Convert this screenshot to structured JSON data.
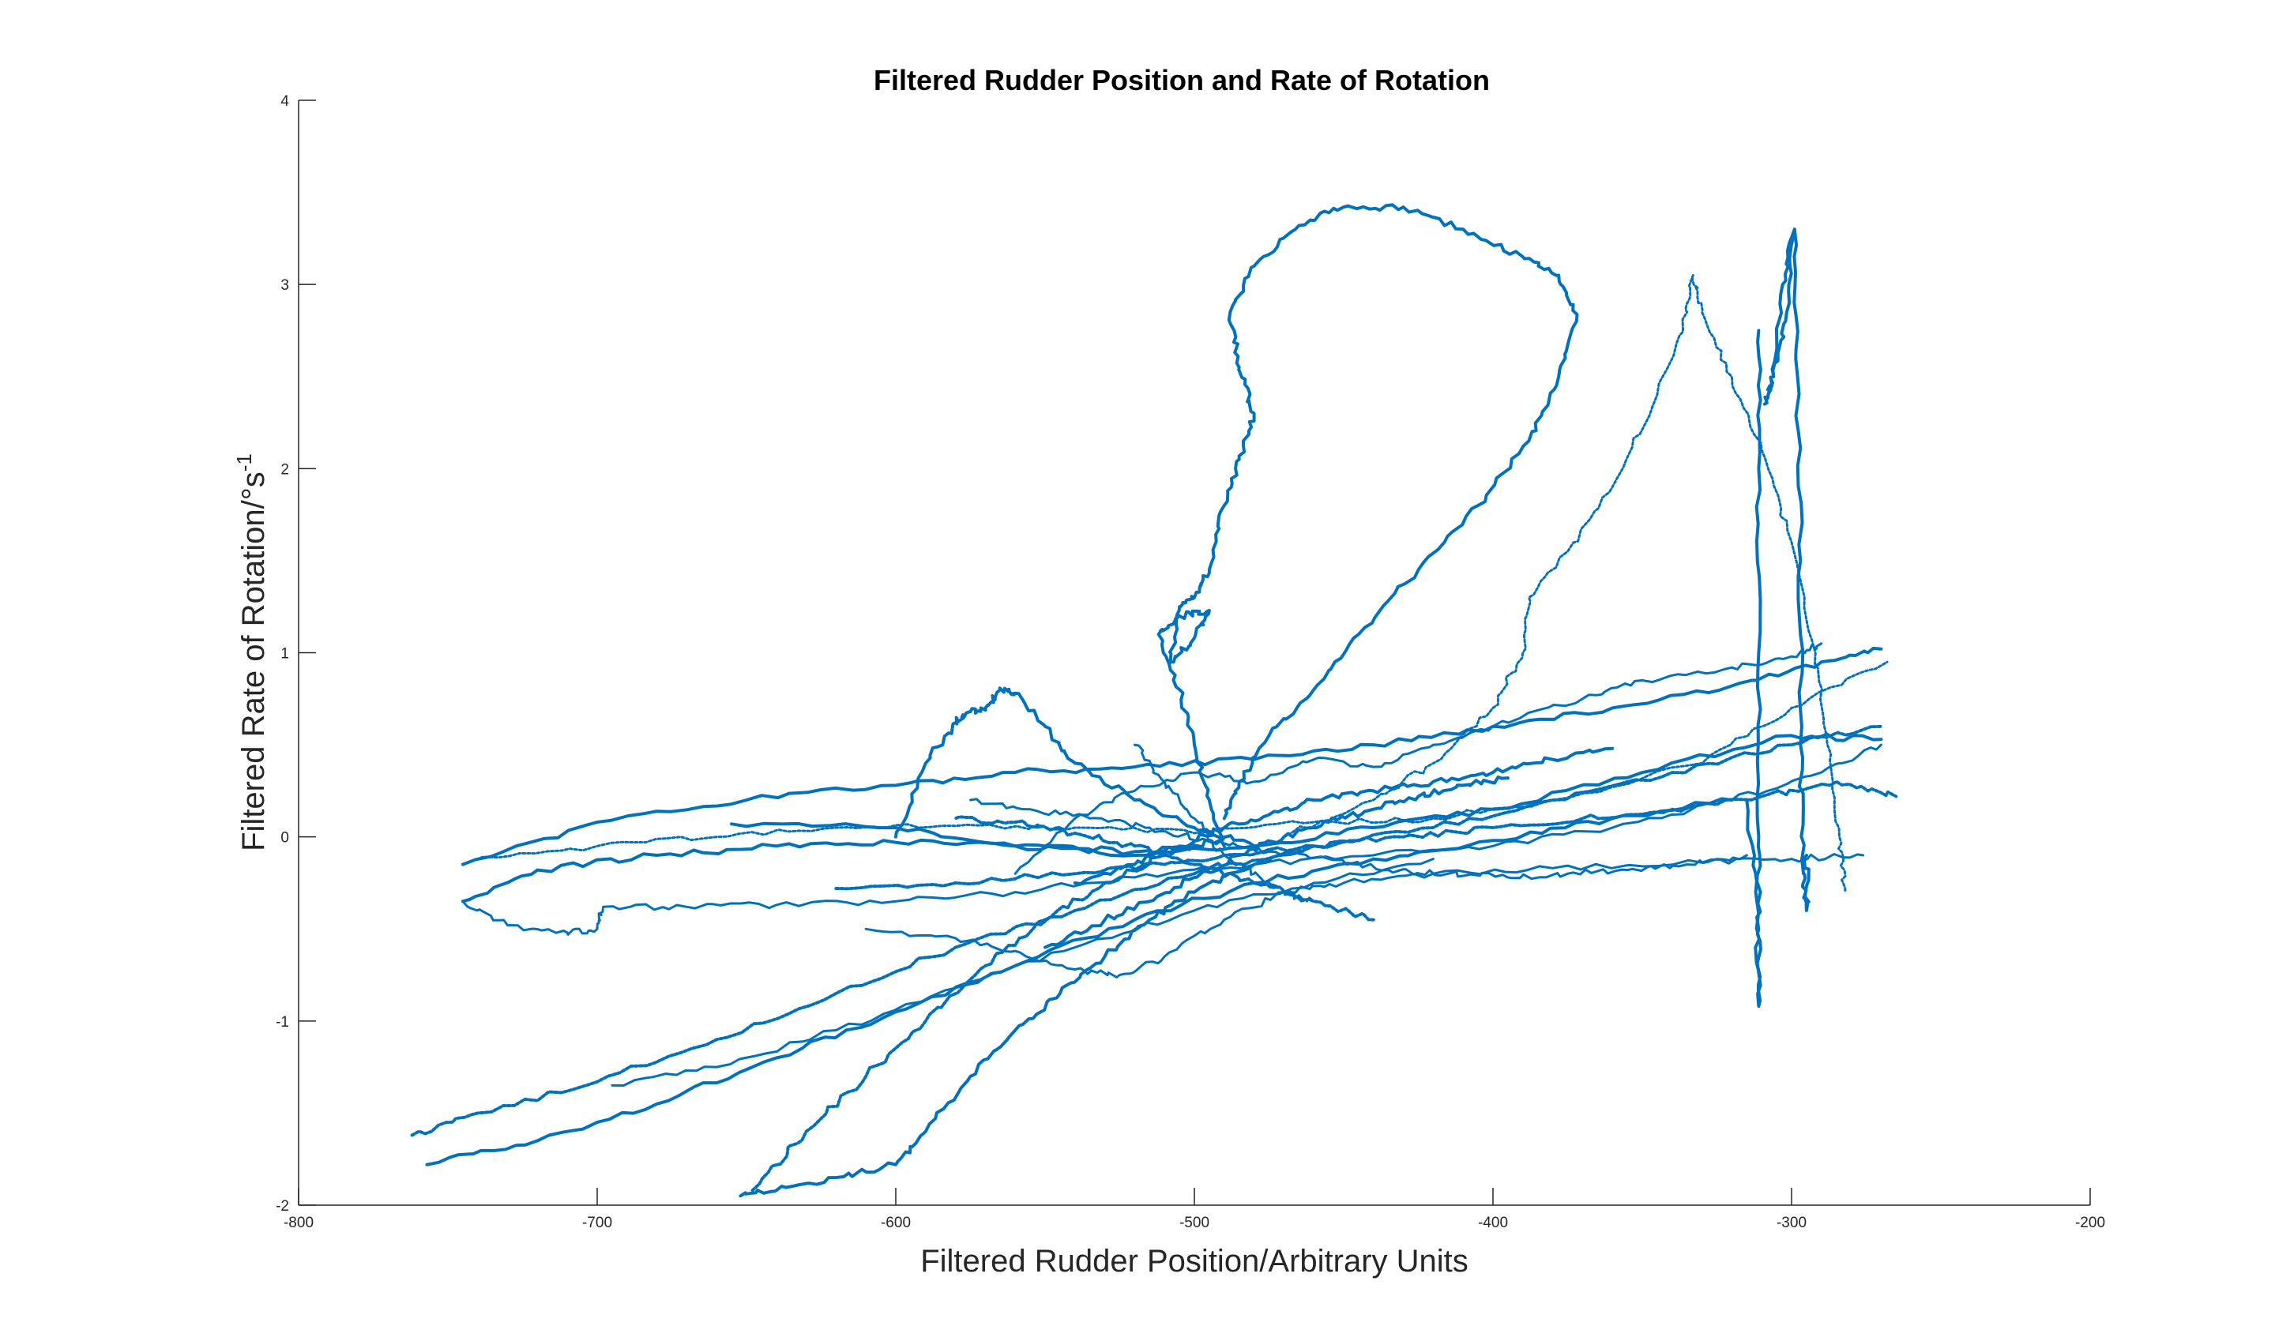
{
  "chart_data": {
    "type": "line",
    "title": "Filtered Rudder Position and Rate of Rotation",
    "xlabel": "Filtered Rudder Position/Arbitrary Units",
    "ylabel_main": "Filtered Rate of Rotation/°s",
    "ylabel_sup": "-1",
    "xlim": [
      -800,
      -200
    ],
    "ylim": [
      -2,
      4
    ],
    "x_ticks": [
      -800,
      -700,
      -600,
      -500,
      -400,
      -300,
      -200
    ],
    "y_ticks": [
      -2,
      -1,
      0,
      1,
      2,
      3,
      4
    ],
    "x_tick_labels": [
      "-800",
      "-700",
      "-600",
      "-500",
      "-400",
      "-300",
      "-200"
    ],
    "y_tick_labels": [
      "-2",
      "-1",
      "0",
      "1",
      "2",
      "3",
      "4"
    ],
    "grid": false,
    "color": "#0072BD",
    "series": [
      {
        "values": [
          [
            -655,
            0.07
          ],
          [
            -600,
            0.05
          ],
          [
            -560,
            -0.05
          ],
          [
            -520,
            -0.1
          ],
          [
            -480,
            -0.05
          ],
          [
            -440,
            0.05
          ],
          [
            -400,
            0.15
          ],
          [
            -350,
            0.35
          ],
          [
            -300,
            0.55
          ],
          [
            -270,
            0.53
          ]
        ]
      },
      {
        "values": [
          [
            -742,
            -0.13
          ],
          [
            -700,
            -0.05
          ],
          [
            -660,
            0.0
          ],
          [
            -620,
            0.05
          ],
          [
            -580,
            0.06
          ],
          [
            -540,
            0.05
          ],
          [
            -500,
            0.02
          ],
          [
            -460,
            0.08
          ],
          [
            -420,
            0.1
          ],
          [
            -380,
            0.2
          ],
          [
            -330,
            0.4
          ],
          [
            -300,
            0.7
          ],
          [
            -268,
            0.95
          ]
        ]
      },
      {
        "values": [
          [
            -745,
            -0.15
          ],
          [
            -700,
            0.08
          ],
          [
            -650,
            0.2
          ],
          [
            -600,
            0.28
          ],
          [
            -560,
            0.35
          ],
          [
            -520,
            0.38
          ],
          [
            -480,
            0.42
          ],
          [
            -440,
            0.5
          ],
          [
            -400,
            0.6
          ],
          [
            -360,
            0.7
          ],
          [
            -320,
            0.82
          ],
          [
            -290,
            0.95
          ],
          [
            -270,
            1.02
          ]
        ]
      },
      {
        "values": [
          [
            -745,
            -0.35
          ],
          [
            -720,
            -0.18
          ],
          [
            -680,
            -0.1
          ],
          [
            -640,
            -0.05
          ],
          [
            -600,
            -0.03
          ],
          [
            -560,
            -0.05
          ],
          [
            -520,
            -0.08
          ],
          [
            -500,
            -0.05
          ]
        ]
      },
      {
        "values": [
          [
            -745,
            -0.35
          ],
          [
            -730,
            -0.48
          ],
          [
            -710,
            -0.52
          ],
          [
            -700,
            -0.5
          ],
          [
            -698,
            -0.38
          ],
          [
            -670,
            -0.38
          ],
          [
            -640,
            -0.37
          ],
          [
            -600,
            -0.35
          ],
          [
            -560,
            -0.3
          ],
          [
            -520,
            -0.22
          ],
          [
            -480,
            -0.15
          ],
          [
            -440,
            -0.1
          ],
          [
            -400,
            -0.05
          ],
          [
            -360,
            0.05
          ],
          [
            -320,
            0.2
          ],
          [
            -290,
            0.35
          ],
          [
            -270,
            0.5
          ]
        ]
      },
      {
        "values": [
          [
            -762,
            -1.62
          ],
          [
            -740,
            -1.5
          ],
          [
            -700,
            -1.33
          ],
          [
            -660,
            -1.1
          ],
          [
            -620,
            -0.85
          ],
          [
            -580,
            -0.6
          ],
          [
            -540,
            -0.4
          ],
          [
            -500,
            -0.2
          ],
          [
            -460,
            -0.05
          ],
          [
            -420,
            0.05
          ],
          [
            -380,
            0.2
          ],
          [
            -340,
            0.35
          ],
          [
            -300,
            0.5
          ],
          [
            -270,
            0.6
          ]
        ]
      },
      {
        "values": [
          [
            -757,
            -1.78
          ],
          [
            -720,
            -1.65
          ],
          [
            -680,
            -1.45
          ],
          [
            -640,
            -1.2
          ],
          [
            -600,
            -0.95
          ],
          [
            -560,
            -0.7
          ],
          [
            -520,
            -0.45
          ],
          [
            -480,
            -0.25
          ],
          [
            -440,
            -0.12
          ],
          [
            -400,
            -0.02
          ],
          [
            -360,
            0.1
          ],
          [
            -320,
            0.2
          ]
        ]
      },
      {
        "values": [
          [
            -695,
            -1.35
          ],
          [
            -660,
            -1.25
          ],
          [
            -620,
            -1.05
          ],
          [
            -580,
            -0.82
          ],
          [
            -540,
            -0.6
          ],
          [
            -500,
            -0.4
          ],
          [
            -460,
            -0.25
          ],
          [
            -420,
            -0.12
          ]
        ]
      },
      {
        "values": [
          [
            -652,
            -1.95
          ],
          [
            -640,
            -1.92
          ],
          [
            -620,
            -1.85
          ],
          [
            -600,
            -1.78
          ],
          [
            -590,
            -1.6
          ],
          [
            -575,
            -1.3
          ],
          [
            -560,
            -1.05
          ],
          [
            -545,
            -0.85
          ],
          [
            -530,
            -0.65
          ],
          [
            -515,
            -0.45
          ],
          [
            -500,
            -0.3
          ],
          [
            -480,
            -0.15
          ],
          [
            -460,
            -0.05
          ]
        ]
      },
      {
        "values": [
          [
            -648,
            -1.92
          ],
          [
            -630,
            -1.6
          ],
          [
            -610,
            -1.3
          ],
          [
            -590,
            -1.0
          ],
          [
            -570,
            -0.7
          ],
          [
            -550,
            -0.45
          ],
          [
            -530,
            -0.25
          ],
          [
            -510,
            -0.1
          ],
          [
            -490,
            0.0
          ]
        ]
      },
      {
        "values": [
          [
            -610,
            -0.5
          ],
          [
            -580,
            -0.55
          ],
          [
            -560,
            -0.62
          ],
          [
            -540,
            -0.72
          ],
          [
            -525,
            -0.75
          ],
          [
            -510,
            -0.65
          ],
          [
            -490,
            -0.45
          ],
          [
            -470,
            -0.3
          ],
          [
            -450,
            -0.25
          ],
          [
            -420,
            -0.2
          ],
          [
            -380,
            -0.17
          ],
          [
            -330,
            -0.14
          ],
          [
            -300,
            -0.12
          ],
          [
            -276,
            -0.1
          ]
        ]
      },
      {
        "values": [
          [
            -600,
            0.0
          ],
          [
            -590,
            0.4
          ],
          [
            -580,
            0.62
          ],
          [
            -575,
            0.68
          ],
          [
            -570,
            0.7
          ],
          [
            -565,
            0.8
          ],
          [
            -560,
            0.78
          ],
          [
            -550,
            0.6
          ],
          [
            -540,
            0.4
          ],
          [
            -520,
            0.2
          ],
          [
            -500,
            0.05
          ],
          [
            -480,
            -0.05
          ]
        ]
      },
      {
        "values": [
          [
            -490,
            -0.05
          ],
          [
            -495,
            0.2
          ],
          [
            -500,
            0.5
          ],
          [
            -505,
            0.8
          ],
          [
            -512,
            1.1
          ],
          [
            -505,
            1.2
          ],
          [
            -495,
            1.23
          ],
          [
            -500,
            1.08
          ],
          [
            -508,
            0.95
          ],
          [
            -505,
            1.25
          ],
          [
            -500,
            1.3
          ],
          [
            -495,
            1.45
          ],
          [
            -490,
            1.8
          ],
          [
            -485,
            2.05
          ],
          [
            -480,
            2.3
          ],
          [
            -485,
            2.55
          ],
          [
            -488,
            2.85
          ],
          [
            -480,
            3.1
          ],
          [
            -465,
            3.32
          ],
          [
            -450,
            3.42
          ],
          [
            -430,
            3.42
          ],
          [
            -410,
            3.3
          ],
          [
            -390,
            3.15
          ],
          [
            -378,
            3.05
          ],
          [
            -372,
            2.8
          ],
          [
            -378,
            2.5
          ],
          [
            -388,
            2.15
          ],
          [
            -405,
            1.8
          ],
          [
            -425,
            1.45
          ],
          [
            -445,
            1.1
          ],
          [
            -460,
            0.8
          ],
          [
            -475,
            0.55
          ],
          [
            -485,
            0.3
          ],
          [
            -490,
            0.1
          ]
        ]
      },
      {
        "values": [
          [
            -470,
            0.0
          ],
          [
            -440,
            0.2
          ],
          [
            -420,
            0.4
          ],
          [
            -400,
            0.7
          ],
          [
            -390,
            1.0
          ],
          [
            -388,
            1.3
          ],
          [
            -375,
            1.55
          ],
          [
            -360,
            1.9
          ],
          [
            -345,
            2.4
          ],
          [
            -335,
            2.85
          ],
          [
            -333,
            3.05
          ],
          [
            -330,
            2.85
          ],
          [
            -320,
            2.5
          ],
          [
            -310,
            2.1
          ],
          [
            -300,
            1.6
          ],
          [
            -292,
            1.0
          ],
          [
            -288,
            0.5
          ],
          [
            -284,
            0.0
          ],
          [
            -282,
            -0.3
          ]
        ]
      },
      {
        "values": [
          [
            -299,
            3.3
          ],
          [
            -303,
            3.0
          ],
          [
            -306,
            2.5
          ],
          [
            -309,
            2.35
          ],
          [
            -306,
            2.5
          ],
          [
            -302,
            2.8
          ],
          [
            -299,
            3.3
          ],
          [
            -298,
            2.5
          ],
          [
            -297,
            1.5
          ],
          [
            -297,
            0.5
          ],
          [
            -296,
            -0.2
          ],
          [
            -295,
            -0.4
          ],
          [
            -295,
            -0.1
          ]
        ]
      },
      {
        "values": [
          [
            -311,
            2.75
          ],
          [
            -311,
            2.0
          ],
          [
            -311,
            1.0
          ],
          [
            -311,
            0.0
          ],
          [
            -311,
            -0.5
          ],
          [
            -311,
            -0.92
          ],
          [
            -312,
            -0.3
          ],
          [
            -315,
            0.2
          ]
        ]
      },
      {
        "values": [
          [
            -560,
            -0.2
          ],
          [
            -540,
            0.1
          ],
          [
            -520,
            0.25
          ],
          [
            -500,
            0.35
          ],
          [
            -480,
            0.3
          ],
          [
            -460,
            0.42
          ],
          [
            -440,
            0.38
          ],
          [
            -420,
            0.5
          ],
          [
            -400,
            0.6
          ],
          [
            -370,
            0.75
          ],
          [
            -350,
            0.85
          ],
          [
            -320,
            0.92
          ],
          [
            -300,
            0.98
          ],
          [
            -290,
            1.05
          ]
        ]
      },
      {
        "values": [
          [
            -620,
            -0.28
          ],
          [
            -580,
            -0.25
          ],
          [
            -540,
            -0.2
          ],
          [
            -510,
            -0.15
          ],
          [
            -490,
            -0.1
          ],
          [
            -460,
            -0.05
          ],
          [
            -430,
            0.0
          ],
          [
            -400,
            0.05
          ],
          [
            -370,
            0.1
          ],
          [
            -340,
            0.15
          ],
          [
            -310,
            0.22
          ],
          [
            -285,
            0.3
          ],
          [
            -265,
            0.22
          ]
        ]
      },
      {
        "values": [
          [
            -540,
            -0.25
          ],
          [
            -520,
            -0.15
          ],
          [
            -505,
            -0.05
          ],
          [
            -490,
            0.05
          ],
          [
            -475,
            0.12
          ],
          [
            -460,
            0.2
          ],
          [
            -440,
            0.25
          ],
          [
            -420,
            0.3
          ],
          [
            -400,
            0.35
          ],
          [
            -380,
            0.42
          ],
          [
            -360,
            0.48
          ]
        ]
      },
      {
        "values": [
          [
            -575,
            0.2
          ],
          [
            -555,
            0.15
          ],
          [
            -535,
            0.1
          ],
          [
            -515,
            0.05
          ],
          [
            -495,
            -0.02
          ],
          [
            -475,
            -0.08
          ],
          [
            -455,
            -0.12
          ],
          [
            -435,
            -0.18
          ],
          [
            -415,
            -0.2
          ],
          [
            -395,
            -0.22
          ],
          [
            -375,
            -0.2
          ],
          [
            -355,
            -0.18
          ],
          [
            -335,
            -0.15
          ],
          [
            -315,
            -0.1
          ]
        ]
      },
      {
        "values": [
          [
            -550,
            -0.6
          ],
          [
            -530,
            -0.45
          ],
          [
            -515,
            -0.35
          ],
          [
            -500,
            -0.22
          ],
          [
            -485,
            -0.1
          ],
          [
            -470,
            0.0
          ],
          [
            -455,
            0.08
          ],
          [
            -440,
            0.15
          ],
          [
            -425,
            0.22
          ],
          [
            -410,
            0.28
          ],
          [
            -395,
            0.32
          ]
        ]
      },
      {
        "values": [
          [
            -440,
            -0.45
          ],
          [
            -460,
            -0.35
          ],
          [
            -480,
            -0.25
          ],
          [
            -500,
            -0.15
          ],
          [
            -520,
            -0.05
          ],
          [
            -540,
            0.02
          ],
          [
            -560,
            0.08
          ],
          [
            -580,
            0.1
          ]
        ]
      },
      {
        "values": [
          [
            -520,
            0.5
          ],
          [
            -510,
            0.3
          ],
          [
            -500,
            0.1
          ],
          [
            -490,
            -0.1
          ],
          [
            -480,
            -0.2
          ],
          [
            -470,
            -0.3
          ],
          [
            -460,
            -0.35
          ]
        ]
      }
    ]
  }
}
